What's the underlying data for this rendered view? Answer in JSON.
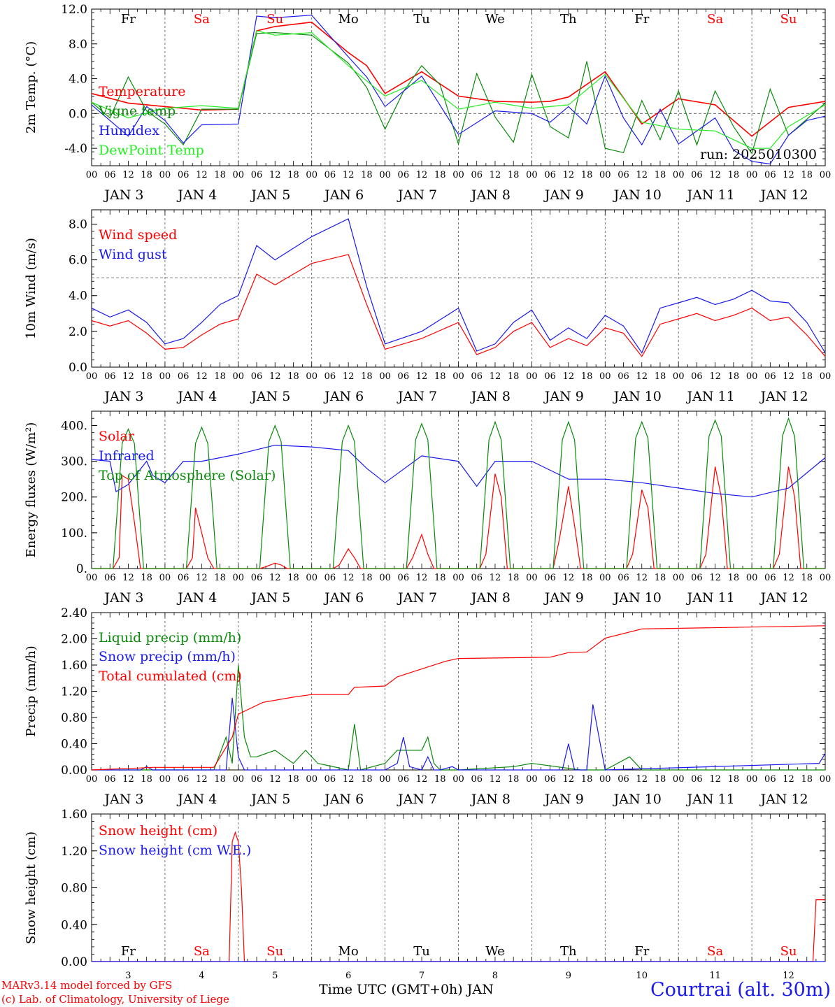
{
  "days": [
    "JAN 3",
    "JAN 4",
    "JAN 5",
    "JAN 6",
    "JAN 7",
    "JAN 8",
    "JAN 9",
    "JAN 10",
    "JAN 11",
    "JAN 12"
  ],
  "weekdays": [
    "Fr",
    "Sa",
    "Su",
    "Mo",
    "Tu",
    "We",
    "Th",
    "Fr",
    "Sa",
    "Su"
  ],
  "weekday_colors": [
    "#000000",
    "#ff0000",
    "#ff0000",
    "#000000",
    "#000000",
    "#000000",
    "#000000",
    "#000000",
    "#ff0000",
    "#ff0000"
  ],
  "hour_ticks": [
    "00",
    "06",
    "12",
    "18"
  ],
  "bottom_day_numbers": [
    "3",
    "4",
    "5",
    "6",
    "7",
    "8",
    "9",
    "10",
    "11",
    "12"
  ],
  "x_title": "Time UTC (GMT+0h) JAN",
  "credit": [
    "MARv3.14 model forced by GFS",
    "(c) Lab. of Climatology, University of Liege"
  ],
  "location": "Courtrai (alt. 30m)",
  "colors": {
    "red": "#ff0000",
    "green": "#0a8a0a",
    "blue": "#1a1aee",
    "lime": "#22ee22",
    "grid": "#555555"
  },
  "chart_data": [
    {
      "type": "line",
      "ylabel": "2m Temp. (°C)",
      "ylim": [
        -6,
        12
      ],
      "yticks": [
        "-4.0",
        "0.0",
        "4.0",
        "8.0",
        "12.0"
      ],
      "reference_line": 0,
      "annotation": "run: 2025010300",
      "x_unit": "hours since JAN 3 00 UTC",
      "series": [
        {
          "name": "Temperature",
          "color": "red",
          "x": [
            0,
            12,
            24,
            36,
            48,
            54,
            60,
            72,
            84,
            90,
            96,
            108,
            120,
            132,
            144,
            150,
            156,
            168,
            180,
            192,
            204,
            216,
            228,
            240
          ],
          "y": [
            2.3,
            1.2,
            0.8,
            0.4,
            0.5,
            9.5,
            10.0,
            10.5,
            7.0,
            5.5,
            2.3,
            4.8,
            2.0,
            1.4,
            1.3,
            1.4,
            1.9,
            4.8,
            -1.2,
            1.7,
            1.0,
            -2.6,
            0.7,
            1.4
          ]
        },
        {
          "name": "Vigne temp",
          "color": "green",
          "x": [
            0,
            6,
            12,
            18,
            24,
            30,
            36,
            48,
            54,
            60,
            72,
            84,
            90,
            96,
            102,
            108,
            114,
            120,
            126,
            132,
            138,
            144,
            150,
            156,
            162,
            168,
            174,
            180,
            186,
            192,
            198,
            204,
            210,
            216,
            222,
            228,
            240
          ],
          "y": [
            1.3,
            -0.5,
            4.2,
            0.3,
            -1.2,
            -3.6,
            0.5,
            0.5,
            9.2,
            9.3,
            9.0,
            5.8,
            3.0,
            -1.8,
            2.5,
            5.5,
            3.3,
            -3.5,
            4.6,
            -0.4,
            -3.3,
            4.5,
            -1.5,
            -2.8,
            6.0,
            -4.0,
            -4.5,
            1.5,
            -3.0,
            2.6,
            -3.6,
            2.6,
            -1.5,
            -4.6,
            2.8,
            -2.5,
            1.2
          ]
        },
        {
          "name": "Humidex",
          "color": "blue",
          "x": [
            0,
            12,
            18,
            24,
            30,
            36,
            48,
            54,
            60,
            72,
            84,
            90,
            96,
            108,
            120,
            132,
            144,
            150,
            156,
            162,
            168,
            174,
            180,
            186,
            192,
            204,
            210,
            216,
            222,
            228,
            234,
            240
          ],
          "y": [
            1.0,
            -2.6,
            0.8,
            -0.8,
            -3.4,
            -1.3,
            -1.2,
            11.2,
            11.0,
            11.3,
            6.5,
            4.2,
            0.8,
            4.3,
            -2.4,
            0.3,
            0.0,
            -1.0,
            0.8,
            -1.2,
            4.3,
            -0.5,
            -3.6,
            0.5,
            -3.5,
            -0.5,
            -4.2,
            -5.5,
            -5.8,
            -2.5,
            -0.8,
            -0.3
          ]
        },
        {
          "name": "DewPoint Temp",
          "color": "lime",
          "x": [
            0,
            12,
            24,
            36,
            48,
            54,
            60,
            72,
            84,
            96,
            108,
            120,
            132,
            144,
            156,
            168,
            180,
            192,
            204,
            216,
            222,
            228,
            240
          ],
          "y": [
            1.3,
            -0.5,
            0.6,
            0.9,
            0.6,
            9.5,
            9.0,
            9.3,
            5.5,
            2.0,
            3.8,
            0.5,
            1.3,
            0.6,
            1.0,
            4.5,
            -1.0,
            -1.8,
            -2.0,
            -4.0,
            -4.0,
            -1.5,
            1.0
          ]
        }
      ]
    },
    {
      "type": "line",
      "ylabel": "10m Wind (m/s)",
      "ylim": [
        0,
        8.8
      ],
      "yticks": [
        "0.0",
        "2.0",
        "4.0",
        "6.0",
        "8.0"
      ],
      "reference_line": 5,
      "x_unit": "hours since JAN 3 00 UTC",
      "series": [
        {
          "name": "Wind speed",
          "color": "red",
          "x": [
            0,
            6,
            12,
            18,
            24,
            30,
            36,
            42,
            48,
            54,
            60,
            72,
            84,
            90,
            96,
            108,
            120,
            126,
            132,
            138,
            144,
            150,
            156,
            162,
            168,
            174,
            180,
            186,
            192,
            198,
            204,
            210,
            216,
            222,
            228,
            234,
            240
          ],
          "y": [
            2.6,
            2.3,
            2.6,
            1.9,
            1.0,
            1.1,
            1.8,
            2.4,
            2.7,
            5.2,
            4.6,
            5.8,
            6.3,
            3.5,
            1.0,
            1.6,
            2.5,
            0.7,
            1.1,
            2.0,
            2.5,
            1.1,
            1.6,
            1.2,
            2.2,
            1.9,
            0.6,
            2.4,
            2.7,
            3.0,
            2.6,
            2.9,
            3.3,
            2.6,
            2.8,
            1.8,
            0.6
          ]
        },
        {
          "name": "Wind gust",
          "color": "blue",
          "x": [
            0,
            6,
            12,
            18,
            24,
            30,
            36,
            42,
            48,
            54,
            60,
            72,
            84,
            90,
            96,
            108,
            120,
            126,
            132,
            138,
            144,
            150,
            156,
            162,
            168,
            174,
            180,
            186,
            192,
            198,
            204,
            210,
            216,
            222,
            228,
            234,
            240
          ],
          "y": [
            3.3,
            2.8,
            3.2,
            2.5,
            1.3,
            1.6,
            2.5,
            3.5,
            4.0,
            6.8,
            6.0,
            7.3,
            8.3,
            4.5,
            1.3,
            2.0,
            3.3,
            0.9,
            1.3,
            2.5,
            3.2,
            1.5,
            2.2,
            1.6,
            2.9,
            2.3,
            0.8,
            3.3,
            3.6,
            3.9,
            3.5,
            3.8,
            4.3,
            3.7,
            3.6,
            2.5,
            0.8
          ]
        }
      ]
    },
    {
      "type": "line",
      "ylabel": "Energy fluxes (W/m²)",
      "ylim": [
        0,
        440
      ],
      "yticks": [
        "0.",
        "100.",
        "200.",
        "300.",
        "400."
      ],
      "x_unit": "hours since JAN 3 00 UTC",
      "series": [
        {
          "name": "Solar",
          "color": "red",
          "x": [
            0,
            7,
            9,
            10,
            12,
            14,
            16,
            31,
            33,
            34,
            36,
            38,
            40,
            55,
            57,
            60,
            62,
            64,
            79,
            81,
            84,
            86,
            88,
            103,
            105,
            108,
            110,
            112,
            127,
            129,
            132,
            134,
            136,
            151,
            153,
            156,
            158,
            160,
            175,
            177,
            180,
            182,
            184,
            199,
            201,
            204,
            206,
            208,
            223,
            225,
            228,
            230,
            232,
            240
          ],
          "y": [
            0,
            0,
            30,
            260,
            250,
            130,
            0,
            0,
            30,
            170,
            100,
            30,
            0,
            0,
            5,
            15,
            10,
            0,
            0,
            10,
            55,
            30,
            0,
            0,
            30,
            95,
            40,
            0,
            0,
            40,
            265,
            200,
            0,
            0,
            80,
            230,
            120,
            0,
            0,
            40,
            220,
            170,
            0,
            0,
            40,
            285,
            200,
            0,
            0,
            40,
            285,
            200,
            0,
            0
          ]
        },
        {
          "name": "Infrared",
          "color": "blue",
          "x": [
            0,
            6,
            8,
            12,
            18,
            20,
            24,
            30,
            36,
            42,
            48,
            60,
            72,
            84,
            90,
            96,
            108,
            120,
            126,
            132,
            144,
            156,
            168,
            180,
            192,
            204,
            216,
            228,
            240
          ],
          "y": [
            305,
            300,
            215,
            235,
            300,
            260,
            240,
            300,
            300,
            310,
            320,
            345,
            340,
            330,
            280,
            240,
            315,
            300,
            230,
            300,
            300,
            250,
            250,
            240,
            225,
            210,
            200,
            225,
            310
          ]
        },
        {
          "name": "Top of Atmosphere (Solar)",
          "color": "green",
          "x": [
            0,
            7,
            10,
            12,
            14,
            17,
            31,
            34,
            36,
            38,
            41,
            55,
            58,
            60,
            62,
            65,
            79,
            82,
            84,
            86,
            89,
            103,
            106,
            108,
            110,
            113,
            127,
            130,
            132,
            134,
            137,
            151,
            154,
            156,
            158,
            161,
            175,
            178,
            180,
            182,
            185,
            199,
            202,
            204,
            206,
            209,
            223,
            226,
            228,
            230,
            233,
            240
          ],
          "y": [
            0,
            0,
            350,
            390,
            350,
            0,
            0,
            350,
            395,
            350,
            0,
            0,
            355,
            400,
            355,
            0,
            0,
            355,
            400,
            355,
            0,
            0,
            360,
            405,
            360,
            0,
            0,
            360,
            410,
            360,
            0,
            0,
            360,
            410,
            360,
            0,
            0,
            365,
            410,
            365,
            0,
            0,
            370,
            415,
            370,
            0,
            0,
            370,
            420,
            370,
            0,
            0
          ]
        }
      ]
    },
    {
      "type": "line",
      "ylabel": "Precip (mm/h)",
      "ylim": [
        0,
        2.4
      ],
      "yticks": [
        "0.00",
        "0.40",
        "0.80",
        "1.20",
        "1.60",
        "2.00",
        "2.40"
      ],
      "x_unit": "hours since JAN 3 00 UTC",
      "series": [
        {
          "name": "Liquid precip (mm/h)",
          "color": "green",
          "x": [
            0,
            40,
            44,
            46,
            48,
            50,
            52,
            54,
            60,
            66,
            70,
            74,
            84,
            86,
            88,
            96,
            100,
            108,
            110,
            112,
            114,
            120,
            138,
            144,
            160,
            168,
            176,
            180,
            240
          ],
          "y": [
            0,
            0,
            0.5,
            0.1,
            1.6,
            0.5,
            0.2,
            0.2,
            0.3,
            0.1,
            0.3,
            0.1,
            0.0,
            0.7,
            0.0,
            0.1,
            0.3,
            0.3,
            0.5,
            0.1,
            0.0,
            0.0,
            0.05,
            0.1,
            0.0,
            0.0,
            0.2,
            0.0,
            0.0
          ]
        },
        {
          "name": "Snow precip (mm/h)",
          "color": "blue",
          "x": [
            0,
            16,
            18,
            20,
            40,
            44,
            46,
            48,
            50,
            96,
            100,
            102,
            104,
            108,
            110,
            112,
            114,
            118,
            120,
            144,
            150,
            154,
            156,
            158,
            160,
            162,
            164,
            168,
            238,
            240
          ],
          "y": [
            0,
            0,
            0.05,
            0,
            0,
            0.0,
            1.1,
            0.2,
            0.0,
            0.0,
            0.1,
            0.5,
            0.05,
            0.0,
            0.2,
            0.0,
            0.0,
            0.05,
            0.0,
            0.0,
            0.0,
            0.0,
            0.4,
            0.0,
            0.0,
            0.0,
            1.0,
            0.0,
            0.1,
            0.25
          ]
        },
        {
          "name": "Total cumulated (cm)",
          "color": "red",
          "x": [
            0,
            16,
            20,
            40,
            46,
            48,
            56,
            66,
            72,
            84,
            86,
            96,
            100,
            108,
            116,
            120,
            150,
            156,
            162,
            168,
            180,
            240
          ],
          "y": [
            0,
            0.03,
            0.04,
            0.04,
            0.5,
            0.85,
            1.03,
            1.11,
            1.15,
            1.15,
            1.26,
            1.28,
            1.42,
            1.54,
            1.66,
            1.7,
            1.72,
            1.79,
            1.8,
            2.01,
            2.15,
            2.2
          ]
        }
      ]
    },
    {
      "type": "line",
      "ylabel": "Snow height (cm)",
      "ylim": [
        0,
        1.6
      ],
      "yticks": [
        "0.00",
        "0.40",
        "0.80",
        "1.20",
        "1.60"
      ],
      "x_unit": "hours since JAN 3 00 UTC",
      "series": [
        {
          "name": "Snow height (cm)",
          "color": "red",
          "x": [
            0,
            45,
            46,
            47,
            48,
            49,
            50,
            51,
            236,
            237,
            240
          ],
          "y": [
            0,
            0,
            1.3,
            1.4,
            1.3,
            0.8,
            0.0,
            0.0,
            0,
            0.67,
            0.67
          ]
        },
        {
          "name": "Snow height (cm W.E.)",
          "color": "blue",
          "x": [
            0,
            240
          ],
          "y": [
            0,
            0
          ]
        }
      ]
    }
  ]
}
